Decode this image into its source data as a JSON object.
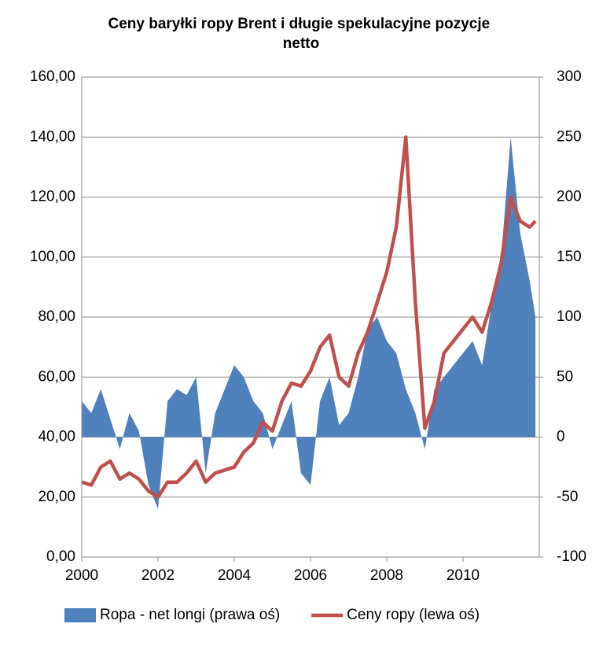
{
  "chart_data": {
    "type": "area-line",
    "title": "Ceny baryłki ropy Brent i długie spekulacyjne pozycje netto",
    "x": [
      2000,
      2000.25,
      2000.5,
      2000.75,
      2001,
      2001.25,
      2001.5,
      2001.75,
      2002,
      2002.25,
      2002.5,
      2002.75,
      2003,
      2003.25,
      2003.5,
      2003.75,
      2004,
      2004.25,
      2004.5,
      2004.75,
      2005,
      2005.25,
      2005.5,
      2005.75,
      2006,
      2006.25,
      2006.5,
      2006.75,
      2007,
      2007.25,
      2007.5,
      2007.75,
      2008,
      2008.25,
      2008.5,
      2008.75,
      2009,
      2009.25,
      2009.5,
      2009.75,
      2010,
      2010.25,
      2010.5,
      2010.75,
      2011,
      2011.25,
      2011.5,
      2011.75,
      2011.9
    ],
    "series": [
      {
        "name": "Ropa - net longi (prawa oś)",
        "type": "area",
        "axis": "y2",
        "color": "#4f81bd",
        "values": [
          30,
          20,
          40,
          15,
          -10,
          20,
          5,
          -40,
          -60,
          30,
          40,
          35,
          50,
          -30,
          20,
          40,
          60,
          50,
          30,
          20,
          -10,
          10,
          30,
          -30,
          -40,
          30,
          50,
          10,
          20,
          50,
          90,
          100,
          80,
          70,
          40,
          20,
          -10,
          40,
          50,
          60,
          70,
          80,
          60,
          110,
          150,
          250,
          170,
          130,
          100
        ]
      },
      {
        "name": "Ceny ropy (lewa oś)",
        "type": "line",
        "axis": "y",
        "color": "#c0504d",
        "values": [
          25,
          24,
          30,
          32,
          26,
          28,
          26,
          22,
          20,
          25,
          25,
          28,
          32,
          25,
          28,
          29,
          30,
          35,
          38,
          45,
          42,
          52,
          58,
          57,
          62,
          70,
          74,
          60,
          57,
          68,
          75,
          85,
          95,
          110,
          140,
          85,
          43,
          52,
          68,
          72,
          76,
          80,
          75,
          85,
          98,
          120,
          112,
          110,
          112
        ]
      }
    ],
    "xlim": [
      2000,
      2012
    ],
    "xticks": [
      2000,
      2002,
      2004,
      2006,
      2008,
      2010
    ],
    "ylim": [
      0,
      160
    ],
    "yticks": [
      {
        "value": 0,
        "label": "0,00"
      },
      {
        "value": 20,
        "label": "20,00"
      },
      {
        "value": 40,
        "label": "40,00"
      },
      {
        "value": 60,
        "label": "60,00"
      },
      {
        "value": 80,
        "label": "80,00"
      },
      {
        "value": 100,
        "label": "100,00"
      },
      {
        "value": 120,
        "label": "120,00"
      },
      {
        "value": 140,
        "label": "140,00"
      },
      {
        "value": 160,
        "label": "160,00"
      }
    ],
    "y2lim": [
      -100,
      300
    ],
    "y2ticks": [
      -100,
      -50,
      0,
      50,
      100,
      150,
      200,
      250,
      300
    ],
    "grid": true,
    "legend": "bottom"
  }
}
